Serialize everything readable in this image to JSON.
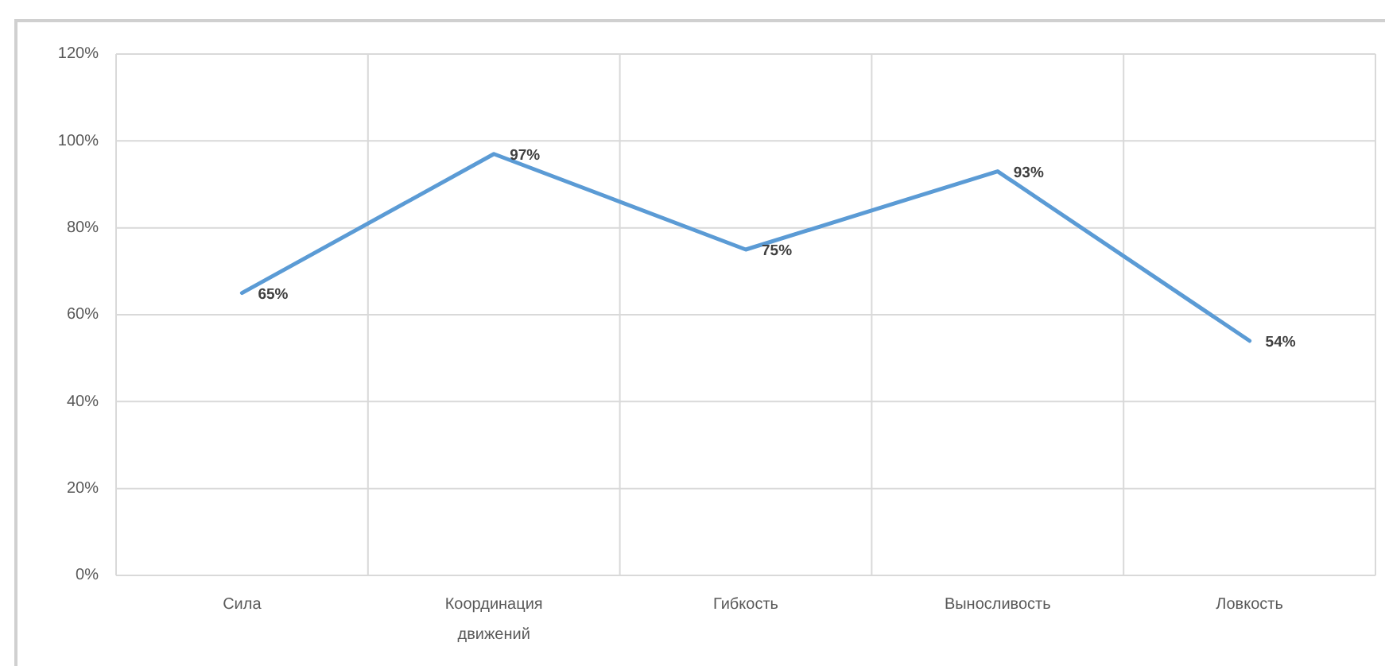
{
  "chart_data": {
    "type": "line",
    "categories": [
      "Сила",
      "Координация движений",
      "Гибкость",
      "Выносливость",
      "Ловкость"
    ],
    "series": [
      {
        "color": "#5b9bd5",
        "values": [
          65,
          97,
          75,
          93,
          54
        ],
        "value_labels": [
          "65%",
          "97%",
          "75%",
          "93%",
          "54%"
        ]
      }
    ],
    "ylim": [
      0,
      120
    ],
    "yticks": [
      {
        "value": 0,
        "label": "0%"
      },
      {
        "value": 20,
        "label": "20%"
      },
      {
        "value": 40,
        "label": "40%"
      },
      {
        "value": 60,
        "label": "60%"
      },
      {
        "value": 80,
        "label": "80%"
      },
      {
        "value": 100,
        "label": "100%"
      },
      {
        "value": 120,
        "label": "120%"
      }
    ],
    "grid": true
  }
}
